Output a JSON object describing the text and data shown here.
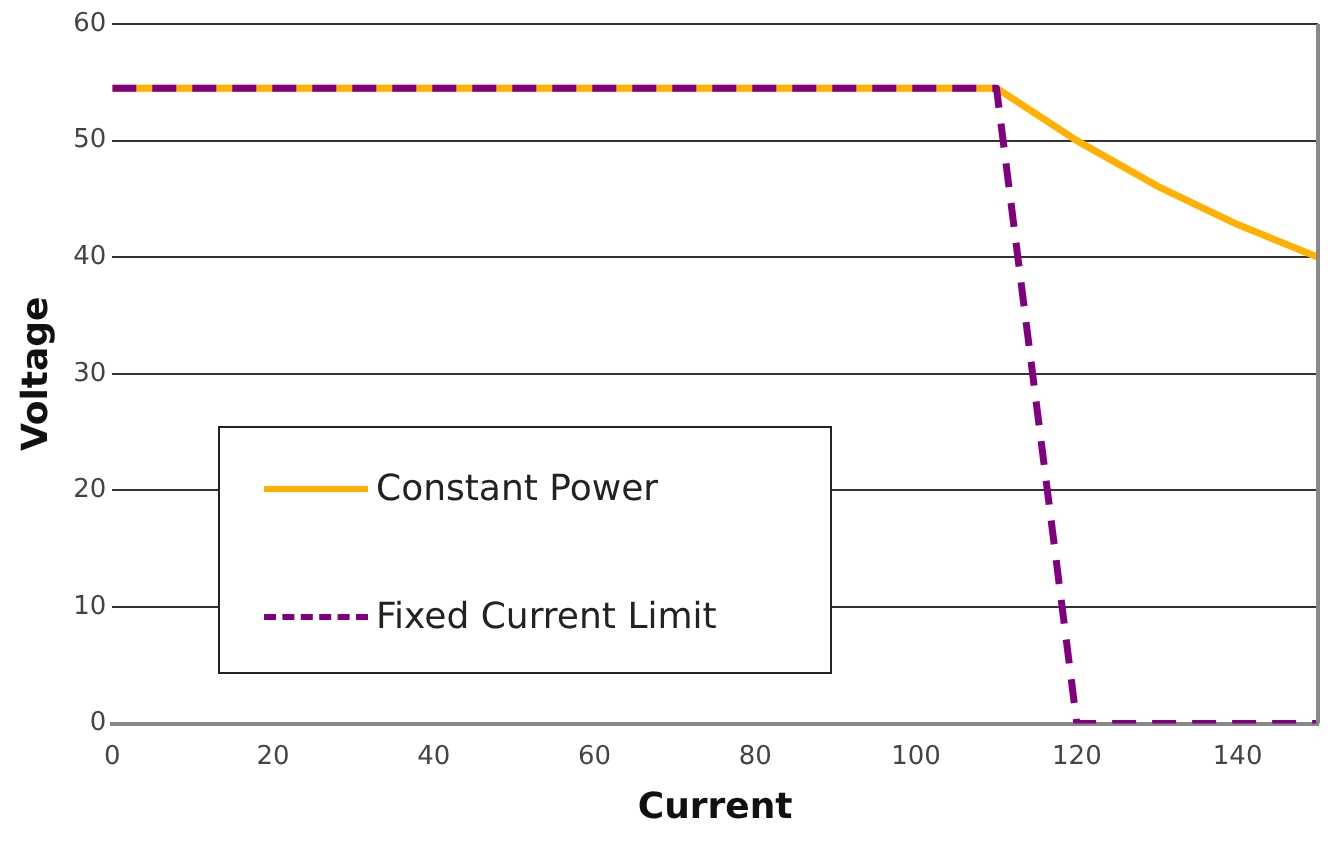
{
  "chart_data": {
    "type": "line",
    "xlabel": "Current",
    "ylabel": "Voltage",
    "xlim": [
      0,
      150
    ],
    "xticks": [
      0,
      20,
      40,
      60,
      80,
      100,
      120,
      140
    ],
    "ylim": [
      0,
      60
    ],
    "yticks": [
      0,
      10,
      20,
      30,
      40,
      50,
      60
    ],
    "grid": "y",
    "legend": "bottom left",
    "marker": "none",
    "series": [
      {
        "name": "Constant Power",
        "color": "#ffb000",
        "line_style": "solid",
        "x": [
          0,
          110,
          120,
          130,
          140,
          150
        ],
        "values": [
          54.5,
          54.5,
          50,
          46.1,
          42.8,
          40
        ]
      },
      {
        "name": "Fixed Current Limit",
        "color": "#800080",
        "line_style": "dashed",
        "x": [
          0,
          110,
          120,
          150
        ],
        "values": [
          54.5,
          54.5,
          0,
          0
        ]
      }
    ]
  }
}
